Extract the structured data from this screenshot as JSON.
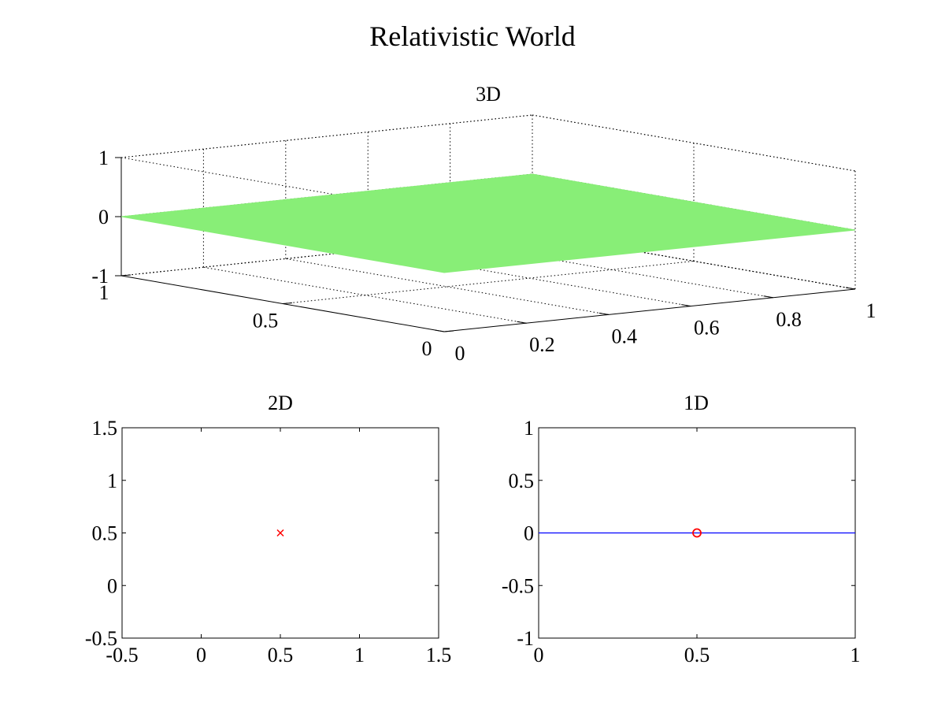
{
  "figure": {
    "title": "Relativistic World"
  },
  "chart_data": [
    {
      "id": "3d",
      "type": "surface",
      "title": "3D",
      "xlim": [
        0,
        1
      ],
      "ylim": [
        0,
        1
      ],
      "zlim": [
        -1,
        1
      ],
      "xticks": [
        0,
        0.2,
        0.4,
        0.6,
        0.8,
        1
      ],
      "xtick_labels": [
        "0",
        "0.2",
        "0.4",
        "0.6",
        "0.8",
        "1"
      ],
      "yticks": [
        0,
        0.5,
        1
      ],
      "ytick_labels": [
        "0",
        "0.5",
        "1"
      ],
      "zticks": [
        -1,
        0,
        1
      ],
      "ztick_labels": [
        "-1",
        "0",
        "1"
      ],
      "grid": true,
      "surface": {
        "x": [
          0,
          1
        ],
        "y": [
          0,
          1
        ],
        "z": [
          [
            0,
            0
          ],
          [
            0,
            0
          ]
        ],
        "color": "#88ee77"
      }
    },
    {
      "id": "2d",
      "type": "scatter",
      "title": "2D",
      "xlim": [
        -0.5,
        1.5
      ],
      "ylim": [
        -0.5,
        1.5
      ],
      "xticks": [
        -0.5,
        0,
        0.5,
        1,
        1.5
      ],
      "xtick_labels": [
        "-0.5",
        "0",
        "0.5",
        "1",
        "1.5"
      ],
      "yticks": [
        -0.5,
        0,
        0.5,
        1,
        1.5
      ],
      "ytick_labels": [
        "-0.5",
        "0",
        "0.5",
        "1",
        "1.5"
      ],
      "grid": false,
      "points": [
        {
          "x": 0.5,
          "y": 0.5,
          "marker": "x",
          "color": "#ff0000"
        }
      ]
    },
    {
      "id": "1d",
      "type": "line",
      "title": "1D",
      "xlim": [
        0,
        1
      ],
      "ylim": [
        -1,
        1
      ],
      "xticks": [
        0,
        0.5,
        1
      ],
      "xtick_labels": [
        "0",
        "0.5",
        "1"
      ],
      "yticks": [
        -1,
        -0.5,
        0,
        0.5,
        1
      ],
      "ytick_labels": [
        "-1",
        "-0.5",
        "0",
        "0.5",
        "1"
      ],
      "grid": false,
      "line": {
        "x": [
          0,
          1
        ],
        "y": [
          0,
          0
        ],
        "color": "#0000ff"
      },
      "points": [
        {
          "x": 0.5,
          "y": 0,
          "marker": "o",
          "color": "#ff0000"
        }
      ]
    }
  ]
}
